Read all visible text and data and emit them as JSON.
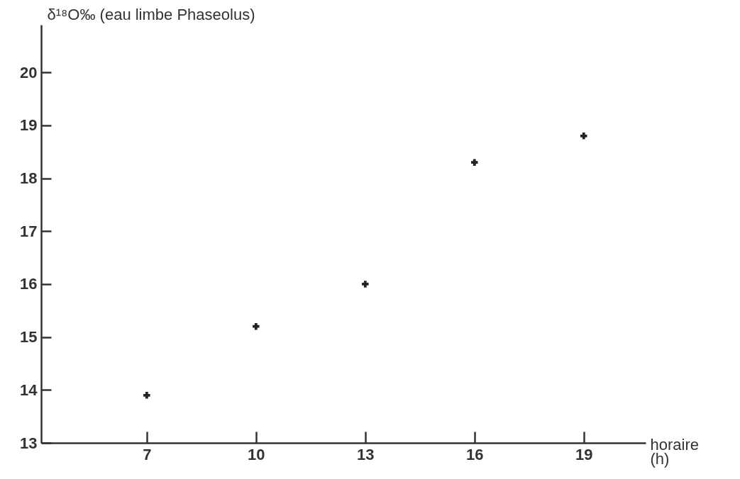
{
  "chart_data": {
    "type": "scatter",
    "ylabel": "δ¹⁸O‰ (eau limbe Phaseolus)",
    "xlabel": "horaire (h)",
    "x": [
      7,
      10,
      13,
      16,
      19
    ],
    "series": [
      {
        "color": "#222222",
        "values": [
          13.9,
          15.2,
          16.0,
          18.3,
          18.8
        ]
      }
    ],
    "xlim": [
      4.1,
      20.7
    ],
    "ylim": [
      13,
      20.9
    ],
    "xticks": [
      7,
      10,
      13,
      16,
      19
    ],
    "yticks": [
      13,
      14,
      15,
      16,
      17,
      18,
      19,
      20
    ],
    "marker": "cross",
    "grid": false,
    "legend": false
  }
}
